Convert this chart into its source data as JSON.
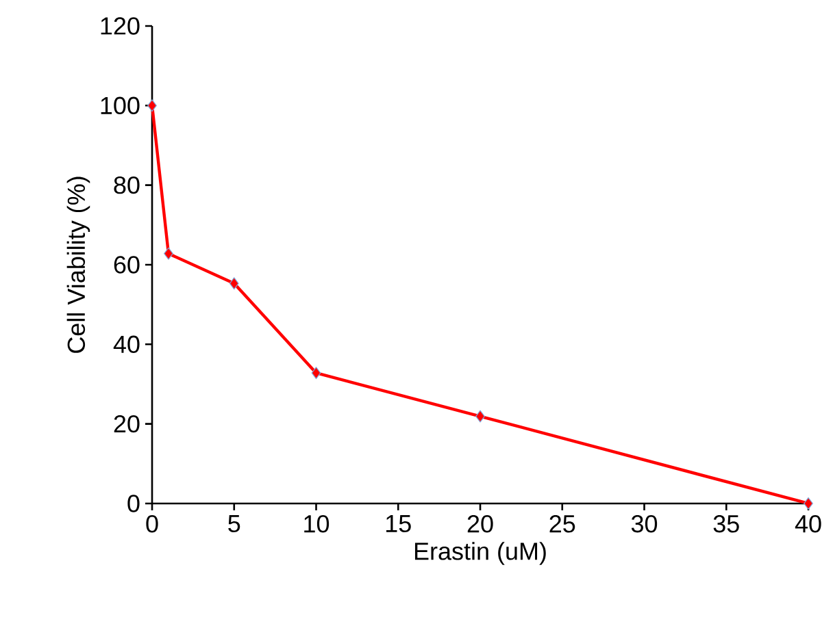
{
  "chart_data": {
    "type": "line",
    "xlabel": "Erastin (uM)",
    "ylabel": "Cell Viability (%)",
    "x": [
      0,
      1,
      5,
      10,
      20,
      40
    ],
    "series": [
      {
        "color": "#ff0000",
        "values": [
          100,
          62.8,
          55.3,
          32.8,
          21.9,
          0
        ]
      }
    ],
    "xlim": [
      0,
      40
    ],
    "xticks": [
      0,
      5,
      10,
      15,
      20,
      25,
      30,
      35,
      40
    ],
    "ylim": [
      0,
      120
    ],
    "yticks": [
      0,
      20,
      40,
      60,
      80,
      100,
      120
    ],
    "grid": false,
    "marker": "diamond",
    "line_style": "solid"
  }
}
